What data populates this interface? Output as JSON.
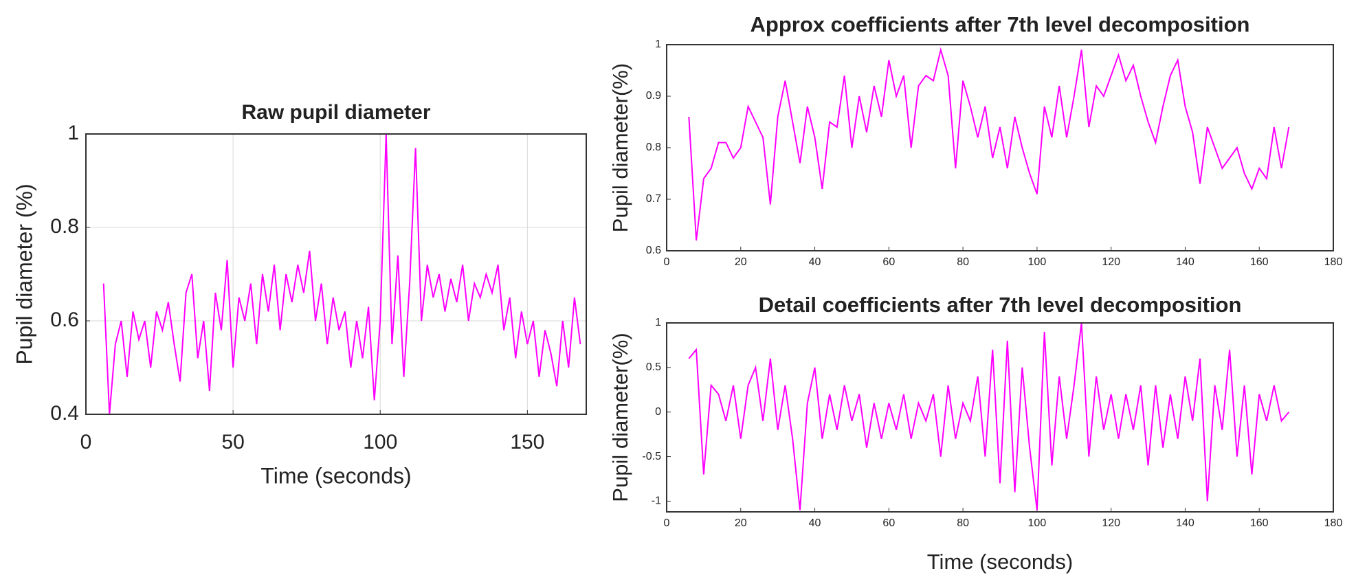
{
  "chart_data": [
    {
      "type": "line",
      "title": "Raw pupil diameter",
      "xlabel": "Time (seconds)",
      "ylabel": "Pupil diameter (%)",
      "x": [
        6,
        8,
        10,
        12,
        14,
        16,
        18,
        20,
        22,
        24,
        26,
        28,
        30,
        32,
        34,
        36,
        38,
        40,
        42,
        44,
        46,
        48,
        50,
        52,
        54,
        56,
        58,
        60,
        62,
        64,
        66,
        68,
        70,
        72,
        74,
        76,
        78,
        80,
        82,
        84,
        86,
        88,
        90,
        92,
        94,
        96,
        98,
        100,
        102,
        104,
        106,
        108,
        110,
        112,
        114,
        116,
        118,
        120,
        122,
        124,
        126,
        128,
        130,
        132,
        134,
        136,
        138,
        140,
        142,
        144,
        146,
        148,
        150,
        152,
        154,
        156,
        158,
        160,
        162,
        164,
        166,
        168
      ],
      "values": [
        0.68,
        0.4,
        0.55,
        0.6,
        0.48,
        0.62,
        0.56,
        0.6,
        0.5,
        0.62,
        0.58,
        0.64,
        0.55,
        0.47,
        0.66,
        0.7,
        0.52,
        0.6,
        0.45,
        0.66,
        0.58,
        0.73,
        0.5,
        0.65,
        0.6,
        0.68,
        0.55,
        0.7,
        0.62,
        0.72,
        0.58,
        0.7,
        0.64,
        0.72,
        0.66,
        0.75,
        0.6,
        0.68,
        0.55,
        0.65,
        0.58,
        0.62,
        0.5,
        0.6,
        0.52,
        0.63,
        0.43,
        0.6,
        1.0,
        0.55,
        0.74,
        0.48,
        0.68,
        0.97,
        0.6,
        0.72,
        0.65,
        0.7,
        0.62,
        0.69,
        0.64,
        0.72,
        0.6,
        0.68,
        0.65,
        0.7,
        0.66,
        0.72,
        0.58,
        0.65,
        0.52,
        0.62,
        0.55,
        0.6,
        0.48,
        0.58,
        0.53,
        0.46,
        0.6,
        0.5,
        0.65,
        0.55
      ],
      "color": "#ff00ff",
      "xlim": [
        0,
        170
      ],
      "ylim": [
        0.4,
        1
      ],
      "xticks": [
        0,
        50,
        100,
        150
      ],
      "yticks": [
        0.4,
        0.6,
        0.8,
        1
      ],
      "grid": true
    },
    {
      "type": "line",
      "title": "Approx coefficients after 7th level decomposition",
      "ylabel": "Pupil diameter(%)",
      "x": [
        6,
        8,
        10,
        12,
        14,
        16,
        18,
        20,
        22,
        24,
        26,
        28,
        30,
        32,
        34,
        36,
        38,
        40,
        42,
        44,
        46,
        48,
        50,
        52,
        54,
        56,
        58,
        60,
        62,
        64,
        66,
        68,
        70,
        72,
        74,
        76,
        78,
        80,
        82,
        84,
        86,
        88,
        90,
        92,
        94,
        96,
        98,
        100,
        102,
        104,
        106,
        108,
        110,
        112,
        114,
        116,
        118,
        120,
        122,
        124,
        126,
        128,
        130,
        132,
        134,
        136,
        138,
        140,
        142,
        144,
        146,
        148,
        150,
        152,
        154,
        156,
        158,
        160,
        162,
        164,
        166,
        168
      ],
      "values": [
        0.86,
        0.62,
        0.74,
        0.76,
        0.81,
        0.81,
        0.78,
        0.8,
        0.88,
        0.85,
        0.82,
        0.69,
        0.86,
        0.93,
        0.85,
        0.77,
        0.88,
        0.82,
        0.72,
        0.85,
        0.84,
        0.94,
        0.8,
        0.9,
        0.83,
        0.92,
        0.86,
        0.97,
        0.9,
        0.94,
        0.8,
        0.92,
        0.94,
        0.93,
        0.99,
        0.94,
        0.76,
        0.93,
        0.88,
        0.82,
        0.88,
        0.78,
        0.84,
        0.76,
        0.86,
        0.8,
        0.75,
        0.71,
        0.88,
        0.82,
        0.92,
        0.82,
        0.9,
        0.99,
        0.84,
        0.92,
        0.9,
        0.94,
        0.98,
        0.93,
        0.96,
        0.9,
        0.85,
        0.81,
        0.88,
        0.94,
        0.97,
        0.88,
        0.83,
        0.73,
        0.84,
        0.8,
        0.76,
        0.78,
        0.8,
        0.75,
        0.72,
        0.76,
        0.74,
        0.84,
        0.76,
        0.84
      ],
      "color": "#ff00ff",
      "xlim": [
        0,
        180
      ],
      "ylim": [
        0.6,
        1
      ],
      "xticks": [
        0,
        20,
        40,
        60,
        80,
        100,
        120,
        140,
        160,
        180
      ],
      "yticks": [
        0.6,
        0.7,
        0.8,
        0.9,
        1
      ],
      "grid": false
    },
    {
      "type": "line",
      "title": "Detail coefficients after 7th level decomposition",
      "xlabel": "Time (seconds)",
      "ylabel": "Pupil diameter(%)",
      "x": [
        6,
        8,
        10,
        12,
        14,
        16,
        18,
        20,
        22,
        24,
        26,
        28,
        30,
        32,
        34,
        36,
        38,
        40,
        42,
        44,
        46,
        48,
        50,
        52,
        54,
        56,
        58,
        60,
        62,
        64,
        66,
        68,
        70,
        72,
        74,
        76,
        78,
        80,
        82,
        84,
        86,
        88,
        90,
        92,
        94,
        96,
        98,
        100,
        102,
        104,
        106,
        108,
        110,
        112,
        114,
        116,
        118,
        120,
        122,
        124,
        126,
        128,
        130,
        132,
        134,
        136,
        138,
        140,
        142,
        144,
        146,
        148,
        150,
        152,
        154,
        156,
        158,
        160,
        162,
        164,
        166,
        168
      ],
      "values": [
        0.6,
        0.7,
        -0.7,
        0.3,
        0.2,
        -0.1,
        0.3,
        -0.3,
        0.3,
        0.5,
        -0.1,
        0.6,
        -0.2,
        0.3,
        -0.3,
        -1.1,
        0.1,
        0.5,
        -0.3,
        0.2,
        -0.2,
        0.3,
        -0.1,
        0.2,
        -0.4,
        0.1,
        -0.3,
        0.1,
        -0.2,
        0.2,
        -0.3,
        0.1,
        -0.1,
        0.2,
        -0.5,
        0.3,
        -0.3,
        0.1,
        -0.1,
        0.4,
        -0.5,
        0.7,
        -0.8,
        0.8,
        -0.9,
        0.5,
        -0.4,
        -1.1,
        0.9,
        -0.6,
        0.4,
        -0.3,
        0.3,
        1.0,
        -0.5,
        0.4,
        -0.2,
        0.2,
        -0.3,
        0.2,
        -0.2,
        0.3,
        -0.6,
        0.3,
        -0.4,
        0.2,
        -0.3,
        0.4,
        -0.1,
        0.6,
        -1.0,
        0.3,
        -0.2,
        0.7,
        -0.5,
        0.3,
        -0.7,
        0.2,
        -0.1,
        0.3,
        -0.1,
        0.0
      ],
      "color": "#ff00ff",
      "xlim": [
        0,
        180
      ],
      "ylim": [
        -1.12,
        1
      ],
      "xticks": [
        0,
        20,
        40,
        60,
        80,
        100,
        120,
        140,
        160,
        180
      ],
      "yticks": [
        -1,
        -0.5,
        0,
        0.5,
        1
      ],
      "grid": false
    }
  ]
}
